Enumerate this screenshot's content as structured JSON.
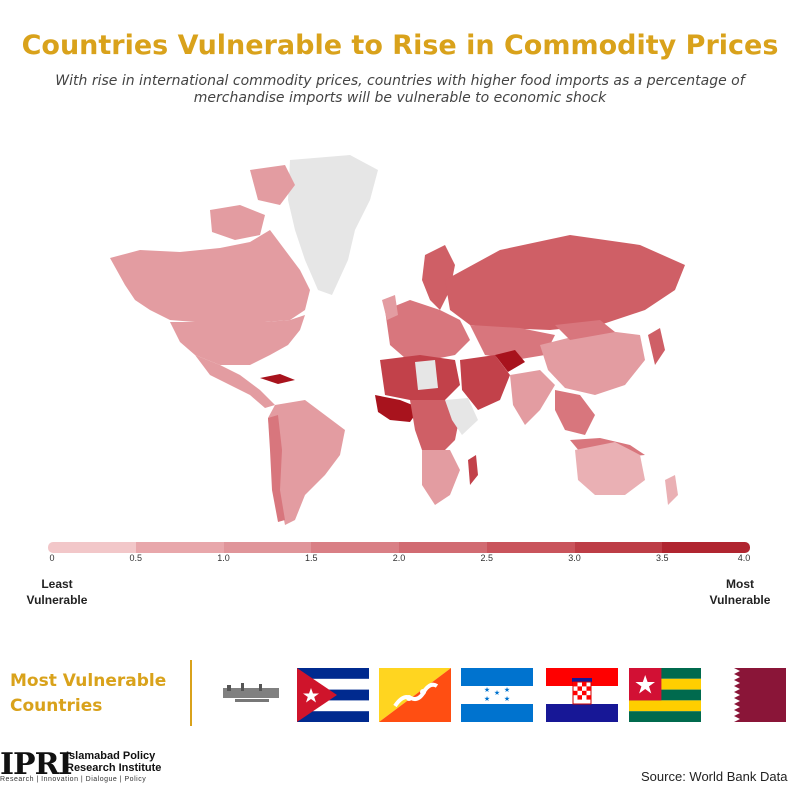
{
  "header": {
    "title": "Countries Vulnerable to Rise in Commodity Prices",
    "subtitle": "With rise in international commodity prices, countries with higher food imports as a percentage of merchandise imports will be vulnerable to economic shock"
  },
  "legend": {
    "ticks": [
      "0",
      "0.5",
      "1.0",
      "1.5",
      "2.0",
      "2.5",
      "3.0",
      "3.5",
      "4.0"
    ],
    "low_label": "Least Vulnerable",
    "high_label": "Most Vulnerable",
    "colors": [
      "#f2c7c9",
      "#e8a7ab",
      "#e0959a",
      "#d97f85",
      "#d16b72",
      "#c9545c",
      "#bd3d46",
      "#b02530"
    ],
    "range": [
      0,
      4.0
    ]
  },
  "map_colors": {
    "no_data": "#e6e6e6",
    "low": "#eab0b4",
    "low_mid": "#e39ca1",
    "mid": "#d8767d",
    "mid_high": "#cf5f66",
    "high": "#c2414a",
    "highest": "#a8131d"
  },
  "most_vulnerable": {
    "title": "Most Vulnerable Countries",
    "countries": [
      {
        "name": "Afghanistan",
        "icon": "afghanistan-flag-icon"
      },
      {
        "name": "Cuba",
        "icon": "cuba-flag-icon"
      },
      {
        "name": "Bhutan",
        "icon": "bhutan-flag-icon"
      },
      {
        "name": "Honduras",
        "icon": "honduras-flag-icon"
      },
      {
        "name": "Croatia",
        "icon": "croatia-flag-icon"
      },
      {
        "name": "Togo",
        "icon": "togo-flag-icon"
      },
      {
        "name": "Qatar",
        "icon": "qatar-flag-icon"
      }
    ]
  },
  "footer": {
    "logo_mark": "IPRI",
    "org_name_line1": "Islamabad Policy",
    "org_name_line2": "Research Institute",
    "tagline": "Research | Innovation | Dialogue | Policy",
    "source": "Source: World Bank Data"
  }
}
